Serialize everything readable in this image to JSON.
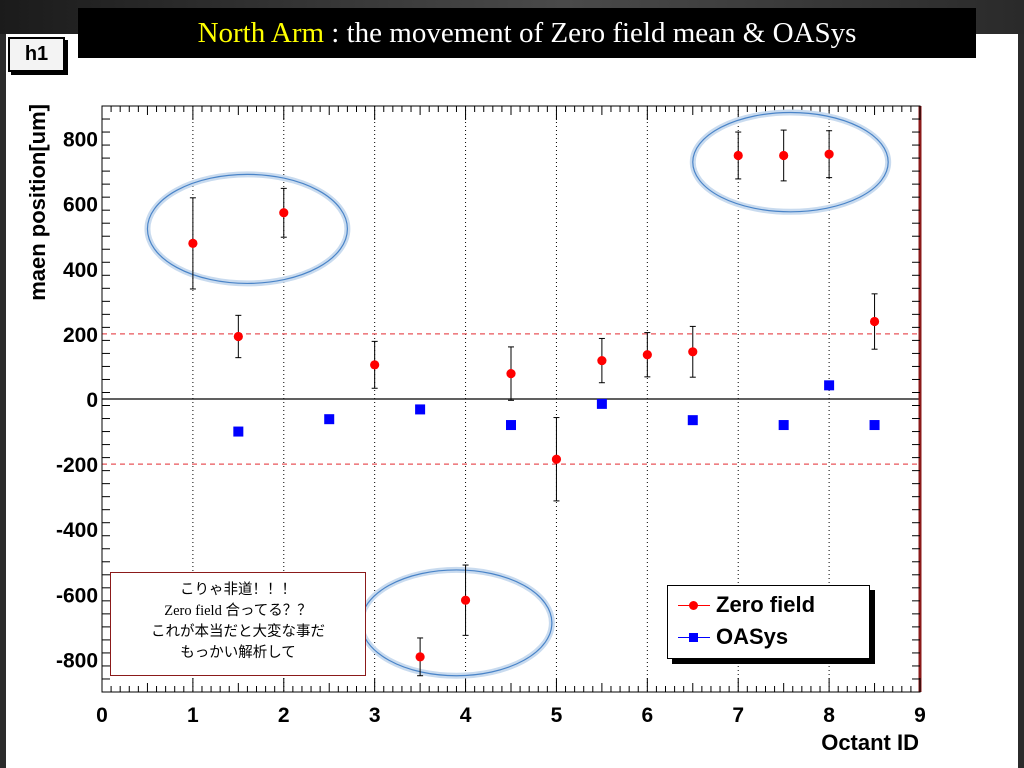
{
  "slide_title": {
    "highlight": "North Arm",
    "rest": " : the movement of Zero field mean & OASys"
  },
  "histogram_label": "h1",
  "annotation_note": {
    "lines": [
      "こりゃ非道！！！",
      "Zero field 合ってる？？",
      "これが本当だと大変な事だ",
      "もっかい解析して"
    ]
  },
  "colors": {
    "zero_field": "#ff0000",
    "oasys": "#0000ff",
    "reference_lines": "#e8555a",
    "ellipse": "#4a84c8",
    "frame_right": "#8b1a1a"
  },
  "chart_data": {
    "type": "scatter",
    "title": "",
    "xlabel": "Octant ID",
    "ylabel": "maen position[um]",
    "xlim": [
      0,
      9
    ],
    "ylim": [
      -900,
      900
    ],
    "x_ticks": [
      0,
      1,
      2,
      3,
      4,
      5,
      6,
      7,
      8,
      9
    ],
    "y_ticks": [
      -800,
      -600,
      -400,
      -200,
      0,
      200,
      400,
      600,
      800
    ],
    "vertical_grid_x": [
      1,
      2,
      3,
      4,
      5,
      6,
      7,
      8
    ],
    "reference_lines_y": [
      200,
      -200
    ],
    "zero_line_y": 0,
    "legend_position": "bottom-right",
    "series": [
      {
        "name": "Zero field",
        "marker": "circle",
        "color": "#ff0000",
        "points": [
          {
            "x": 1,
            "y": 478,
            "err": 140
          },
          {
            "x": 1.5,
            "y": 192,
            "err": 65
          },
          {
            "x": 2,
            "y": 572,
            "err": 75
          },
          {
            "x": 3,
            "y": 105,
            "err": 72
          },
          {
            "x": 3.5,
            "y": -792,
            "err": 58
          },
          {
            "x": 4,
            "y": -618,
            "err": 108
          },
          {
            "x": 4.5,
            "y": 78,
            "err": 82
          },
          {
            "x": 5,
            "y": -185,
            "err": 128
          },
          {
            "x": 5.5,
            "y": 118,
            "err": 68
          },
          {
            "x": 6,
            "y": 136,
            "err": 68
          },
          {
            "x": 6.5,
            "y": 145,
            "err": 78
          },
          {
            "x": 7,
            "y": 748,
            "err": 72
          },
          {
            "x": 7.5,
            "y": 748,
            "err": 78
          },
          {
            "x": 8,
            "y": 752,
            "err": 72
          },
          {
            "x": 8.5,
            "y": 238,
            "err": 85
          }
        ]
      },
      {
        "name": "OASys",
        "marker": "square",
        "color": "#0000ff",
        "points": [
          {
            "x": 1.5,
            "y": -100
          },
          {
            "x": 2.5,
            "y": -62
          },
          {
            "x": 3.5,
            "y": -32
          },
          {
            "x": 4.5,
            "y": -80
          },
          {
            "x": 5.5,
            "y": -15
          },
          {
            "x": 6.5,
            "y": -65
          },
          {
            "x": 7.5,
            "y": -80
          },
          {
            "x": 8,
            "y": 42
          },
          {
            "x": 8.5,
            "y": -80
          }
        ]
      }
    ],
    "highlight_ellipses": [
      {
        "x_range": [
          0.5,
          2.7
        ],
        "y_range": [
          355,
          690
        ]
      },
      {
        "x_range": [
          6.5,
          8.65
        ],
        "y_range": [
          575,
          880
        ]
      },
      {
        "x_range": [
          2.85,
          4.95
        ],
        "y_range": [
          -850,
          -525
        ]
      }
    ]
  }
}
